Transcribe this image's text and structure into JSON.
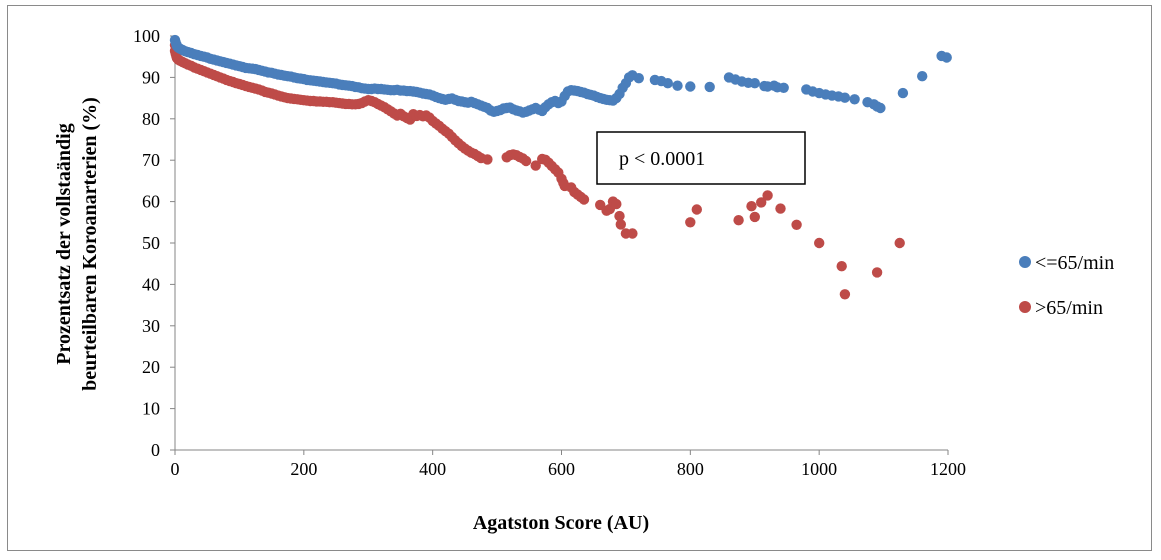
{
  "chart_data": {
    "type": "scatter",
    "xlabel": "Agatston Score (AU)",
    "ylabel_line1": "Prozentsatz der vollstaändig",
    "ylabel_line2": "beurteilbaren Koroanarterien (%)",
    "xlim": [
      0,
      1200
    ],
    "ylim": [
      0,
      100
    ],
    "x_ticks": [
      0,
      200,
      400,
      600,
      800,
      1000,
      1200
    ],
    "y_ticks": [
      0,
      10,
      20,
      30,
      40,
      50,
      60,
      70,
      80,
      90,
      100
    ],
    "grid": false,
    "legend_position": "right",
    "annotation": "p < 0.0001",
    "series": [
      {
        "name": "<=65/min",
        "color": "#4a7ebb",
        "points": [
          [
            0,
            99
          ],
          [
            1,
            98.5
          ],
          [
            2,
            98
          ],
          [
            3,
            97.6
          ],
          [
            5,
            97.2
          ],
          [
            8,
            96.9
          ],
          [
            12,
            96.6
          ],
          [
            16,
            96.3
          ],
          [
            20,
            96.1
          ],
          [
            25,
            95.9
          ],
          [
            30,
            95.6
          ],
          [
            35,
            95.4
          ],
          [
            40,
            95.2
          ],
          [
            45,
            95
          ],
          [
            50,
            94.8
          ],
          [
            55,
            94.5
          ],
          [
            60,
            94.3
          ],
          [
            65,
            94.1
          ],
          [
            70,
            93.9
          ],
          [
            75,
            93.7
          ],
          [
            80,
            93.5
          ],
          [
            85,
            93.3
          ],
          [
            90,
            93.1
          ],
          [
            95,
            92.9
          ],
          [
            100,
            92.7
          ],
          [
            105,
            92.5
          ],
          [
            110,
            92.3
          ],
          [
            115,
            92.2
          ],
          [
            120,
            92.1
          ],
          [
            125,
            92
          ],
          [
            130,
            91.8
          ],
          [
            135,
            91.6
          ],
          [
            140,
            91.4
          ],
          [
            145,
            91.2
          ],
          [
            150,
            91.1
          ],
          [
            155,
            90.9
          ],
          [
            160,
            90.7
          ],
          [
            165,
            90.6
          ],
          [
            170,
            90.4
          ],
          [
            175,
            90.3
          ],
          [
            180,
            90.2
          ],
          [
            185,
            90
          ],
          [
            190,
            89.8
          ],
          [
            195,
            89.7
          ],
          [
            200,
            89.6
          ],
          [
            205,
            89.4
          ],
          [
            210,
            89.3
          ],
          [
            215,
            89.2
          ],
          [
            220,
            89.1
          ],
          [
            225,
            89
          ],
          [
            230,
            88.9
          ],
          [
            235,
            88.8
          ],
          [
            240,
            88.7
          ],
          [
            245,
            88.6
          ],
          [
            250,
            88.5
          ],
          [
            255,
            88.3
          ],
          [
            260,
            88.2
          ],
          [
            265,
            88.1
          ],
          [
            270,
            88
          ],
          [
            275,
            87.9
          ],
          [
            280,
            87.7
          ],
          [
            285,
            87.6
          ],
          [
            290,
            87.4
          ],
          [
            295,
            87.3
          ],
          [
            300,
            87.2
          ],
          [
            305,
            87.2
          ],
          [
            310,
            87.3
          ],
          [
            315,
            87.2
          ],
          [
            320,
            87.2
          ],
          [
            325,
            87.1
          ],
          [
            330,
            87
          ],
          [
            335,
            86.9
          ],
          [
            340,
            86.9
          ],
          [
            345,
            87
          ],
          [
            350,
            86.8
          ],
          [
            355,
            86.8
          ],
          [
            360,
            86.7
          ],
          [
            365,
            86.7
          ],
          [
            370,
            86.6
          ],
          [
            375,
            86.5
          ],
          [
            380,
            86.3
          ],
          [
            385,
            86.1
          ],
          [
            390,
            86
          ],
          [
            395,
            85.9
          ],
          [
            400,
            85.6
          ],
          [
            405,
            85.3
          ],
          [
            410,
            85
          ],
          [
            415,
            84.8
          ],
          [
            420,
            84.6
          ],
          [
            425,
            84.8
          ],
          [
            430,
            84.9
          ],
          [
            435,
            84.6
          ],
          [
            440,
            84.3
          ],
          [
            445,
            84.2
          ],
          [
            450,
            84
          ],
          [
            455,
            83.9
          ],
          [
            460,
            84.1
          ],
          [
            465,
            83.8
          ],
          [
            470,
            83.5
          ],
          [
            475,
            83.2
          ],
          [
            480,
            82.9
          ],
          [
            485,
            82.6
          ],
          [
            490,
            82
          ],
          [
            495,
            81.7
          ],
          [
            500,
            81.9
          ],
          [
            505,
            82.1
          ],
          [
            510,
            82.5
          ],
          [
            515,
            82.6
          ],
          [
            520,
            82.7
          ],
          [
            525,
            82.3
          ],
          [
            530,
            82
          ],
          [
            535,
            81.8
          ],
          [
            540,
            81.5
          ],
          [
            545,
            81.7
          ],
          [
            550,
            82
          ],
          [
            555,
            82.3
          ],
          [
            560,
            82.6
          ],
          [
            565,
            82.2
          ],
          [
            570,
            81.9
          ],
          [
            575,
            82.8
          ],
          [
            580,
            83.5
          ],
          [
            585,
            84
          ],
          [
            590,
            84.3
          ],
          [
            595,
            83.8
          ],
          [
            600,
            84.2
          ],
          [
            605,
            85.5
          ],
          [
            610,
            86.6
          ],
          [
            615,
            86.9
          ],
          [
            620,
            86.8
          ],
          [
            625,
            86.7
          ],
          [
            630,
            86.5
          ],
          [
            635,
            86.3
          ],
          [
            640,
            86
          ],
          [
            645,
            85.8
          ],
          [
            650,
            85.6
          ],
          [
            655,
            85.3
          ],
          [
            660,
            85
          ],
          [
            665,
            84.8
          ],
          [
            670,
            84.6
          ],
          [
            675,
            84.5
          ],
          [
            680,
            84.4
          ],
          [
            685,
            85
          ],
          [
            690,
            86
          ],
          [
            695,
            87.5
          ],
          [
            700,
            88.6
          ],
          [
            705,
            90
          ],
          [
            710,
            90.5
          ],
          [
            720,
            89.8
          ],
          [
            745,
            89.4
          ],
          [
            755,
            89.1
          ],
          [
            765,
            88.6
          ],
          [
            780,
            88
          ],
          [
            800,
            87.8
          ],
          [
            830,
            87.7
          ],
          [
            860,
            90
          ],
          [
            870,
            89.5
          ],
          [
            880,
            89
          ],
          [
            890,
            88.7
          ],
          [
            900,
            88.6
          ],
          [
            915,
            87.9
          ],
          [
            920,
            87.8
          ],
          [
            930,
            88
          ],
          [
            935,
            87.6
          ],
          [
            945,
            87.5
          ],
          [
            980,
            87.1
          ],
          [
            990,
            86.6
          ],
          [
            1000,
            86.2
          ],
          [
            1010,
            85.9
          ],
          [
            1020,
            85.6
          ],
          [
            1030,
            85.4
          ],
          [
            1040,
            85.1
          ],
          [
            1055,
            84.7
          ],
          [
            1075,
            84
          ],
          [
            1085,
            83.5
          ],
          [
            1090,
            83
          ],
          [
            1095,
            82.6
          ],
          [
            1130,
            86.2
          ],
          [
            1160,
            90.3
          ],
          [
            1190,
            95.2
          ],
          [
            1198,
            94.8
          ]
        ]
      },
      {
        "name": ">65/min",
        "color": "#be4b48",
        "points": [
          [
            0,
            97.8
          ],
          [
            0,
            96.4
          ],
          [
            1,
            95.8
          ],
          [
            2,
            95.2
          ],
          [
            3,
            94.7
          ],
          [
            5,
            94.3
          ],
          [
            8,
            94
          ],
          [
            12,
            93.7
          ],
          [
            16,
            93.4
          ],
          [
            20,
            93.1
          ],
          [
            25,
            92.8
          ],
          [
            30,
            92.4
          ],
          [
            35,
            92.1
          ],
          [
            40,
            91.8
          ],
          [
            45,
            91.5
          ],
          [
            50,
            91.2
          ],
          [
            55,
            90.9
          ],
          [
            60,
            90.6
          ],
          [
            65,
            90.3
          ],
          [
            70,
            90
          ],
          [
            75,
            89.7
          ],
          [
            80,
            89.4
          ],
          [
            85,
            89.1
          ],
          [
            90,
            88.9
          ],
          [
            95,
            88.6
          ],
          [
            100,
            88.4
          ],
          [
            105,
            88.2
          ],
          [
            110,
            87.9
          ],
          [
            115,
            87.7
          ],
          [
            120,
            87.5
          ],
          [
            125,
            87.3
          ],
          [
            130,
            87.1
          ],
          [
            135,
            86.8
          ],
          [
            140,
            86.5
          ],
          [
            145,
            86.3
          ],
          [
            150,
            86.1
          ],
          [
            155,
            85.9
          ],
          [
            160,
            85.6
          ],
          [
            165,
            85.4
          ],
          [
            170,
            85.2
          ],
          [
            175,
            85
          ],
          [
            180,
            84.9
          ],
          [
            185,
            84.8
          ],
          [
            190,
            84.7
          ],
          [
            195,
            84.6
          ],
          [
            200,
            84.5
          ],
          [
            205,
            84.4
          ],
          [
            210,
            84.3
          ],
          [
            215,
            84.3
          ],
          [
            220,
            84.2
          ],
          [
            225,
            84.2
          ],
          [
            230,
            84.1
          ],
          [
            235,
            84.1
          ],
          [
            240,
            84
          ],
          [
            245,
            84
          ],
          [
            250,
            83.9
          ],
          [
            255,
            83.8
          ],
          [
            260,
            83.7
          ],
          [
            265,
            83.6
          ],
          [
            270,
            83.6
          ],
          [
            275,
            83.5
          ],
          [
            280,
            83.5
          ],
          [
            285,
            83.6
          ],
          [
            290,
            83.8
          ],
          [
            295,
            84.2
          ],
          [
            300,
            84.5
          ],
          [
            305,
            84.3
          ],
          [
            310,
            84
          ],
          [
            315,
            83.6
          ],
          [
            320,
            83.2
          ],
          [
            325,
            82.8
          ],
          [
            330,
            82.3
          ],
          [
            335,
            81.8
          ],
          [
            340,
            81.3
          ],
          [
            345,
            80.8
          ],
          [
            350,
            81.2
          ],
          [
            355,
            80.6
          ],
          [
            360,
            80.2
          ],
          [
            365,
            79.8
          ],
          [
            370,
            81.1
          ],
          [
            375,
            80.7
          ],
          [
            380,
            80.9
          ],
          [
            385,
            80.6
          ],
          [
            390,
            80.8
          ],
          [
            395,
            80.3
          ],
          [
            400,
            79.5
          ],
          [
            405,
            78.9
          ],
          [
            410,
            78.3
          ],
          [
            415,
            77.6
          ],
          [
            420,
            77
          ],
          [
            425,
            76.4
          ],
          [
            430,
            75.6
          ],
          [
            435,
            74.8
          ],
          [
            440,
            74.1
          ],
          [
            445,
            73.4
          ],
          [
            450,
            72.8
          ],
          [
            455,
            72.3
          ],
          [
            460,
            71.8
          ],
          [
            465,
            71.5
          ],
          [
            470,
            71
          ],
          [
            475,
            70.5
          ],
          [
            485,
            70.2
          ],
          [
            515,
            70.7
          ],
          [
            520,
            71.2
          ],
          [
            525,
            71.4
          ],
          [
            530,
            71.2
          ],
          [
            535,
            70.8
          ],
          [
            540,
            70.4
          ],
          [
            545,
            69.8
          ],
          [
            560,
            68.7
          ],
          [
            570,
            70.3
          ],
          [
            575,
            70.1
          ],
          [
            580,
            69.4
          ],
          [
            585,
            68.6
          ],
          [
            590,
            67.8
          ],
          [
            595,
            67
          ],
          [
            600,
            65.5
          ],
          [
            603,
            64.5
          ],
          [
            605,
            63.8
          ],
          [
            615,
            63.4
          ],
          [
            620,
            62.3
          ],
          [
            625,
            61.7
          ],
          [
            630,
            61.1
          ],
          [
            635,
            60.5
          ],
          [
            660,
            59.2
          ],
          [
            670,
            57.8
          ],
          [
            675,
            58.2
          ],
          [
            680,
            60
          ],
          [
            685,
            59.4
          ],
          [
            690,
            56.5
          ],
          [
            692,
            54.5
          ],
          [
            700,
            52.3
          ],
          [
            710,
            52.3
          ],
          [
            800,
            55
          ],
          [
            810,
            58.1
          ],
          [
            875,
            55.5
          ],
          [
            895,
            58.9
          ],
          [
            900,
            56.3
          ],
          [
            910,
            59.8
          ],
          [
            920,
            61.5
          ],
          [
            940,
            58.3
          ],
          [
            965,
            54.4
          ],
          [
            1000,
            50
          ],
          [
            1035,
            44.4
          ],
          [
            1040,
            37.6
          ],
          [
            1090,
            42.9
          ],
          [
            1125,
            50
          ]
        ]
      }
    ]
  }
}
